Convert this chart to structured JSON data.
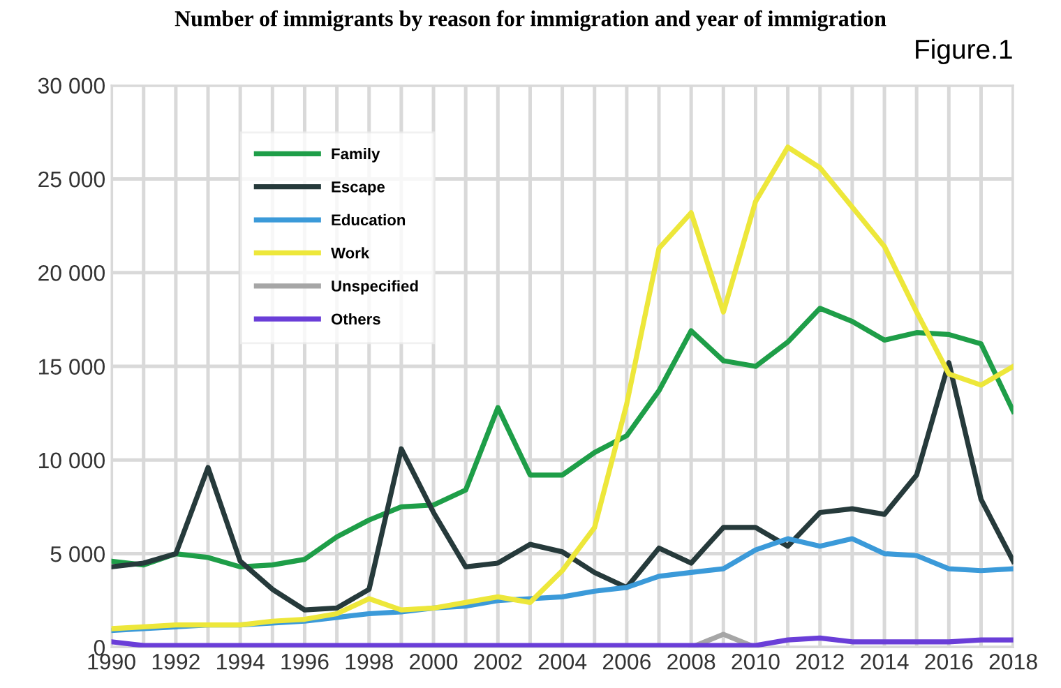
{
  "chart_data": {
    "type": "line",
    "title": "Number of immigrants by reason for immigration and year of immigration",
    "annotations": [
      "Figure.1"
    ],
    "x": [
      1990,
      1991,
      1992,
      1993,
      1994,
      1995,
      1996,
      1997,
      1998,
      1999,
      2000,
      2001,
      2002,
      2003,
      2004,
      2005,
      2006,
      2007,
      2008,
      2009,
      2010,
      2011,
      2012,
      2013,
      2014,
      2015,
      2016,
      2017,
      2018
    ],
    "series": [
      {
        "name": "Family",
        "color": "#1e9e48",
        "values": [
          4600,
          4400,
          5000,
          4800,
          4300,
          4400,
          4700,
          5900,
          6800,
          7500,
          7600,
          8400,
          12800,
          9200,
          9200,
          10400,
          11300,
          13700,
          16900,
          15300,
          15000,
          16300,
          18100,
          17400,
          16400,
          16800,
          16700,
          16200,
          12600
        ]
      },
      {
        "name": "Escape",
        "color": "#263a3b",
        "values": [
          4300,
          4500,
          5000,
          9600,
          4600,
          3100,
          2000,
          2100,
          3100,
          10600,
          7200,
          4300,
          4500,
          5500,
          5100,
          4000,
          3200,
          5300,
          4500,
          6400,
          6400,
          5400,
          7200,
          7400,
          7100,
          9200,
          15200,
          7900,
          4600
        ]
      },
      {
        "name": "Education",
        "color": "#3b9ad9",
        "values": [
          900,
          1000,
          1100,
          1200,
          1200,
          1300,
          1400,
          1600,
          1800,
          1900,
          2100,
          2200,
          2500,
          2600,
          2700,
          3000,
          3200,
          3800,
          4000,
          4200,
          5200,
          5800,
          5400,
          5800,
          5000,
          4900,
          4200,
          4100,
          4200
        ]
      },
      {
        "name": "Work",
        "color": "#ede73a",
        "values": [
          1000,
          1100,
          1200,
          1200,
          1200,
          1400,
          1500,
          1800,
          2600,
          2000,
          2100,
          2400,
          2700,
          2400,
          4100,
          6400,
          13000,
          21300,
          23200,
          17900,
          23800,
          26700,
          25600,
          23500,
          21400,
          17900,
          14600,
          14000,
          15000
        ]
      },
      {
        "name": "Unspecified",
        "color": "#a6a6a6",
        "values": [
          null,
          null,
          null,
          null,
          null,
          null,
          null,
          null,
          null,
          null,
          null,
          null,
          null,
          null,
          null,
          null,
          null,
          null,
          0,
          700,
          0,
          null,
          null,
          null,
          null,
          null,
          null,
          null,
          null
        ]
      },
      {
        "name": "Others",
        "color": "#6a3ed8",
        "values": [
          300,
          100,
          100,
          100,
          100,
          100,
          100,
          100,
          100,
          100,
          100,
          100,
          100,
          100,
          100,
          100,
          100,
          100,
          100,
          100,
          100,
          400,
          500,
          300,
          300,
          300,
          300,
          400,
          400
        ]
      }
    ],
    "xlim": [
      1990,
      2018
    ],
    "xticks": [
      1990,
      {
        "value": 1991,
        "label": null
      },
      1992,
      {
        "value": 1993,
        "label": null
      },
      1994,
      {
        "value": 1995,
        "label": null
      },
      1996,
      {
        "value": 1997,
        "label": null
      },
      1998,
      {
        "value": 1999,
        "label": null
      },
      2000,
      {
        "value": 2001,
        "label": null
      },
      2002,
      {
        "value": 2003,
        "label": null
      },
      2004,
      {
        "value": 2005,
        "label": null
      },
      2006,
      {
        "value": 2007,
        "label": null
      },
      2008,
      {
        "value": 2009,
        "label": null
      },
      2010,
      {
        "value": 2011,
        "label": null
      },
      2012,
      {
        "value": 2013,
        "label": null
      },
      2014,
      {
        "value": 2015,
        "label": null
      },
      2016,
      {
        "value": 2017,
        "label": null
      },
      2018
    ],
    "ylim": [
      0,
      30000
    ],
    "yticks": [
      0,
      {
        "value": 5000,
        "label": "5 000"
      },
      {
        "value": 10000,
        "label": "10 000"
      },
      {
        "value": 15000,
        "label": "15 000"
      },
      {
        "value": 20000,
        "label": "20 000"
      },
      {
        "value": 25000,
        "label": "25 000"
      },
      {
        "value": 30000,
        "label": "30 000"
      }
    ],
    "grid": true,
    "legend": "top left",
    "marker": "none",
    "line_style": "solid"
  }
}
